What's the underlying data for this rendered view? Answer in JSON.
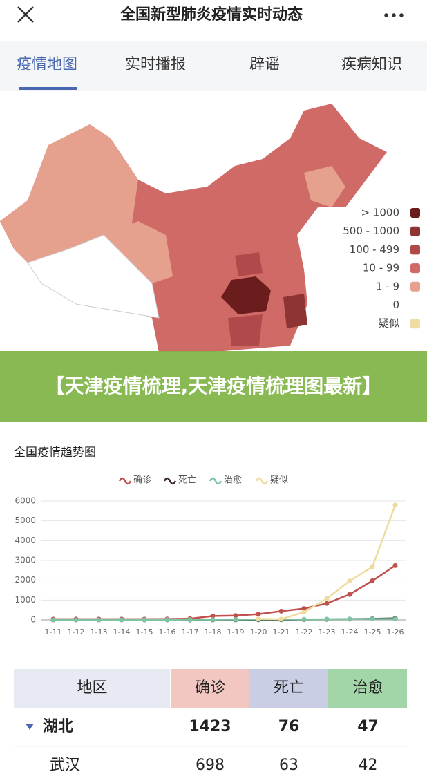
{
  "header": {
    "title": "全国新型肺炎疫情实时动态"
  },
  "tabs": [
    "疫情地图",
    "实时播报",
    "辟谣",
    "疾病知识"
  ],
  "map": {
    "legend": [
      {
        "label": "> 1000",
        "color": "#6b1c1c"
      },
      {
        "label": "500 - 1000",
        "color": "#8f3434"
      },
      {
        "label": "100 - 499",
        "color": "#b04a4a"
      },
      {
        "label": "10 - 99",
        "color": "#d06a66"
      },
      {
        "label": "1 - 9",
        "color": "#e6a08e"
      },
      {
        "label": "0",
        "color": "#ffffff"
      },
      {
        "label": "疑似",
        "color": "#efdca4"
      }
    ]
  },
  "banner": {
    "text": "【天津疫情梳理,天津疫情梳理图最新】"
  },
  "chart_data": {
    "type": "line",
    "title": "全国疫情趋势图",
    "categories": [
      "1-11",
      "1-12",
      "1-13",
      "1-14",
      "1-15",
      "1-16",
      "1-17",
      "1-18",
      "1-19",
      "1-20",
      "1-21",
      "1-22",
      "1-23",
      "1-24",
      "1-25",
      "1-26"
    ],
    "series": [
      {
        "name": "确诊",
        "color": "#c0504d",
        "values": [
          41,
          41,
          41,
          41,
          41,
          45,
          62,
          198,
          218,
          291,
          440,
          571,
          830,
          1287,
          1975,
          2744
        ]
      },
      {
        "name": "死亡",
        "color": "#3a2a2a",
        "values": [
          1,
          1,
          1,
          2,
          2,
          2,
          2,
          3,
          4,
          6,
          9,
          17,
          25,
          41,
          56,
          80
        ]
      },
      {
        "name": "治愈",
        "color": "#7cc4a4",
        "values": [
          2,
          2,
          2,
          3,
          5,
          8,
          12,
          15,
          17,
          25,
          25,
          28,
          34,
          38,
          49,
          51
        ]
      },
      {
        "name": "疑似",
        "color": "#eedc9f",
        "values": [
          null,
          null,
          null,
          null,
          null,
          null,
          null,
          null,
          null,
          54,
          37,
          393,
          1072,
          1965,
          2684,
          5794
        ]
      }
    ],
    "ylim": [
      0,
      6000
    ],
    "yticks": [
      0,
      1000,
      2000,
      3000,
      4000,
      5000,
      6000
    ],
    "grid": true
  },
  "table": {
    "header": [
      "地区",
      "确诊",
      "死亡",
      "治愈"
    ],
    "header_colors": [
      "#e8eaf3",
      "#f2c6c1",
      "#c9cee4",
      "#a2d6a8"
    ],
    "rows": [
      [
        "湖北",
        "1423",
        "76",
        "47"
      ],
      [
        "武汉",
        "698",
        "63",
        "42"
      ]
    ]
  }
}
